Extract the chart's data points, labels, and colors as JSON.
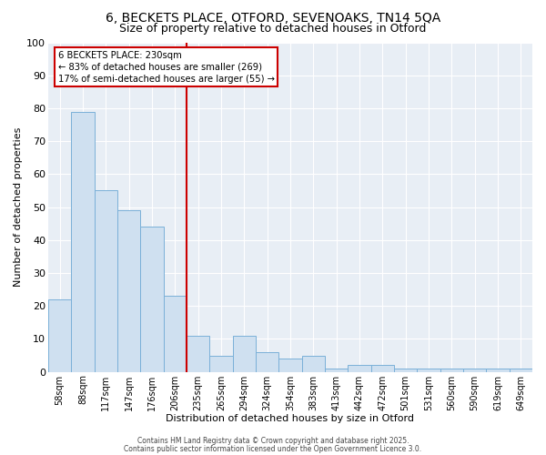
{
  "title1": "6, BECKETS PLACE, OTFORD, SEVENOAKS, TN14 5QA",
  "title2": "Size of property relative to detached houses in Otford",
  "xlabel": "Distribution of detached houses by size in Otford",
  "ylabel": "Number of detached properties",
  "categories": [
    "58sqm",
    "88sqm",
    "117sqm",
    "147sqm",
    "176sqm",
    "206sqm",
    "235sqm",
    "265sqm",
    "294sqm",
    "324sqm",
    "354sqm",
    "383sqm",
    "413sqm",
    "442sqm",
    "472sqm",
    "501sqm",
    "531sqm",
    "560sqm",
    "590sqm",
    "619sqm",
    "649sqm"
  ],
  "values": [
    22,
    79,
    55,
    49,
    44,
    23,
    11,
    5,
    11,
    6,
    4,
    5,
    1,
    2,
    2,
    1,
    1,
    1,
    1,
    1,
    1
  ],
  "bar_color": "#cfe0f0",
  "bar_edge_color": "#7ab0d8",
  "vline_color": "#cc0000",
  "annotation_line1": "6 BECKETS PLACE: 230sqm",
  "annotation_line2": "← 83% of detached houses are smaller (269)",
  "annotation_line3": "17% of semi-detached houses are larger (55) →",
  "annotation_box_facecolor": "#ffffff",
  "annotation_box_edgecolor": "#cc0000",
  "ylim": [
    0,
    100
  ],
  "yticks": [
    0,
    10,
    20,
    30,
    40,
    50,
    60,
    70,
    80,
    90,
    100
  ],
  "bg_color": "#e8eef5",
  "grid_color": "#ffffff",
  "title1_fontsize": 10,
  "title2_fontsize": 9,
  "footer1": "Contains HM Land Registry data © Crown copyright and database right 2025.",
  "footer2": "Contains public sector information licensed under the Open Government Licence 3.0."
}
